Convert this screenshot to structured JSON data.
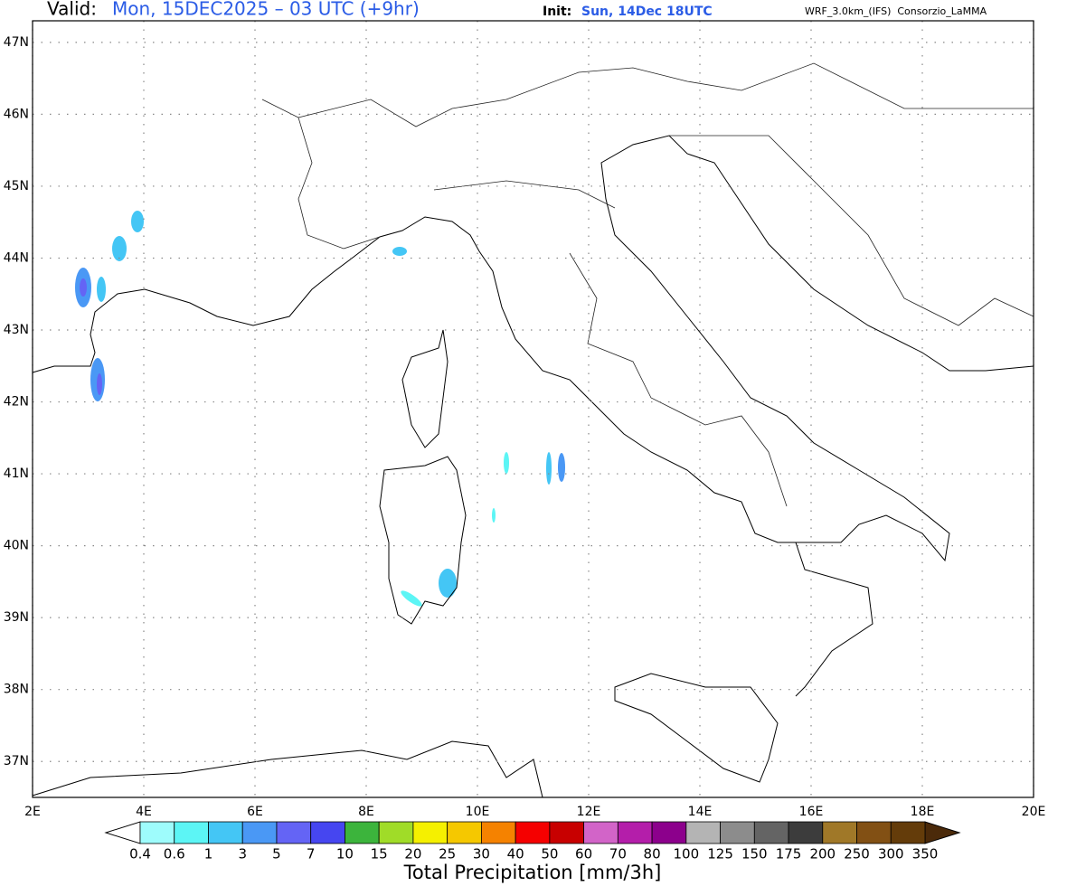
{
  "header": {
    "valid_label": "Valid:",
    "valid_time": "Mon, 15DEC2025 – 03 UTC (+9hr)",
    "init_label": "Init:",
    "init_time": "Sun, 14Dec 18UTC",
    "model": "WRF_3.0km_(IFS)  Consorzio_LaMMA"
  },
  "map": {
    "xlim": [
      2,
      20
    ],
    "ylim": [
      36.5,
      47.3
    ],
    "xticks": [
      {
        "value": 2,
        "label": "2E"
      },
      {
        "value": 4,
        "label": "4E"
      },
      {
        "value": 6,
        "label": "6E"
      },
      {
        "value": 8,
        "label": "8E"
      },
      {
        "value": 10,
        "label": "10E"
      },
      {
        "value": 12,
        "label": "12E"
      },
      {
        "value": 14,
        "label": "14E"
      },
      {
        "value": 16,
        "label": "16E"
      },
      {
        "value": 18,
        "label": "18E"
      },
      {
        "value": 20,
        "label": "20E"
      }
    ],
    "yticks": [
      {
        "value": 37,
        "label": "37N"
      },
      {
        "value": 38,
        "label": "38N"
      },
      {
        "value": 39,
        "label": "39N"
      },
      {
        "value": 40,
        "label": "40N"
      },
      {
        "value": 41,
        "label": "41N"
      },
      {
        "value": 42,
        "label": "42N"
      },
      {
        "value": 43,
        "label": "43N"
      },
      {
        "value": 44,
        "label": "44N"
      },
      {
        "value": 45,
        "label": "45N"
      },
      {
        "value": 46,
        "label": "46N"
      },
      {
        "value": 47,
        "label": "47N"
      }
    ],
    "grid": true
  },
  "colorbar": {
    "title": "Total Precipitation [mm/3h]",
    "levels": [
      0.4,
      0.6,
      1,
      3,
      5,
      7,
      10,
      15,
      20,
      25,
      30,
      40,
      50,
      60,
      70,
      80,
      100,
      125,
      150,
      175,
      200,
      250,
      300,
      350
    ],
    "colors": [
      "#9efcfc",
      "#5cf5f5",
      "#44c6f5",
      "#4a98f5",
      "#6464f5",
      "#4646f0",
      "#3cb43c",
      "#a0dc28",
      "#f5f000",
      "#f5c800",
      "#f58200",
      "#f50000",
      "#c80000",
      "#d264c8",
      "#b41eaa",
      "#8c008c",
      "#b4b4b4",
      "#8c8c8c",
      "#646464",
      "#3c3c3c",
      "#a07828",
      "#825014",
      "#643c0a"
    ],
    "under_color": "#ffffff",
    "over_color": "#4b2a0a"
  }
}
